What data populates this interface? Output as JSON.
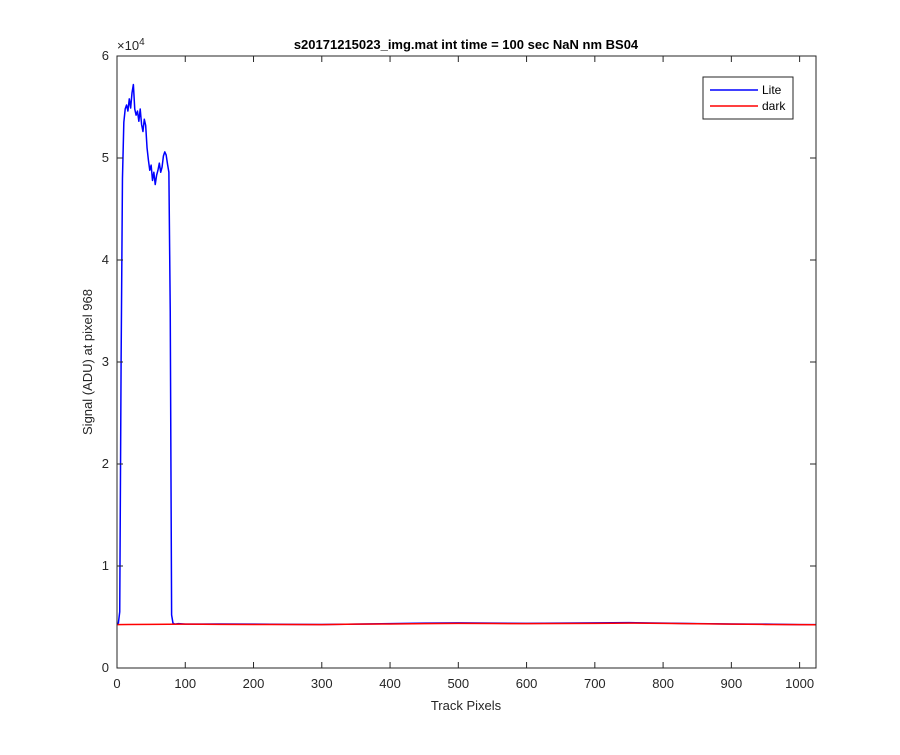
{
  "chart_data": {
    "type": "line",
    "title": "s20171215023_img.mat int time = 100 sec  NaN nm BS04",
    "xlabel": "Track Pixels",
    "ylabel": "Signal (ADU) at pixel 968",
    "y_exponent_label": "×10",
    "y_exponent_power": "4",
    "xlim": [
      0,
      1024
    ],
    "ylim": [
      0,
      60000
    ],
    "xticks": [
      0,
      100,
      200,
      300,
      400,
      500,
      600,
      700,
      800,
      900,
      1000
    ],
    "yticks": [
      0,
      10000,
      20000,
      30000,
      40000,
      50000,
      60000
    ],
    "ytick_labels": [
      "0",
      "1",
      "2",
      "3",
      "4",
      "5",
      "6"
    ],
    "grid": false,
    "legend_position": "top-right",
    "series": [
      {
        "name": "Lite",
        "color": "#0000ff",
        "points": [
          [
            0,
            4300
          ],
          [
            2,
            4400
          ],
          [
            4,
            5500
          ],
          [
            6,
            30000
          ],
          [
            8,
            48000
          ],
          [
            10,
            53500
          ],
          [
            12,
            54800
          ],
          [
            14,
            55200
          ],
          [
            16,
            54600
          ],
          [
            18,
            55800
          ],
          [
            20,
            54900
          ],
          [
            22,
            56400
          ],
          [
            24,
            57200
          ],
          [
            26,
            54800
          ],
          [
            28,
            54200
          ],
          [
            30,
            54600
          ],
          [
            32,
            53600
          ],
          [
            34,
            54800
          ],
          [
            36,
            53300
          ],
          [
            38,
            52600
          ],
          [
            40,
            53800
          ],
          [
            42,
            53200
          ],
          [
            44,
            51000
          ],
          [
            46,
            49800
          ],
          [
            48,
            48800
          ],
          [
            50,
            49300
          ],
          [
            52,
            47800
          ],
          [
            54,
            48600
          ],
          [
            56,
            47400
          ],
          [
            58,
            48300
          ],
          [
            60,
            48800
          ],
          [
            62,
            49500
          ],
          [
            64,
            48600
          ],
          [
            66,
            49100
          ],
          [
            68,
            50200
          ],
          [
            70,
            50600
          ],
          [
            72,
            50300
          ],
          [
            74,
            49400
          ],
          [
            76,
            48600
          ],
          [
            78,
            35000
          ],
          [
            80,
            5200
          ],
          [
            82,
            4400
          ],
          [
            85,
            4300
          ],
          [
            90,
            4350
          ],
          [
            100,
            4300
          ],
          [
            150,
            4320
          ],
          [
            200,
            4300
          ],
          [
            250,
            4280
          ],
          [
            300,
            4270
          ],
          [
            350,
            4300
          ],
          [
            400,
            4350
          ],
          [
            450,
            4400
          ],
          [
            500,
            4420
          ],
          [
            550,
            4400
          ],
          [
            600,
            4380
          ],
          [
            650,
            4400
          ],
          [
            700,
            4420
          ],
          [
            750,
            4450
          ],
          [
            800,
            4400
          ],
          [
            850,
            4350
          ],
          [
            900,
            4320
          ],
          [
            950,
            4300
          ],
          [
            1000,
            4250
          ],
          [
            1024,
            4250
          ]
        ]
      },
      {
        "name": "dark",
        "color": "#ff0000",
        "points": [
          [
            0,
            4250
          ],
          [
            50,
            4280
          ],
          [
            100,
            4300
          ],
          [
            150,
            4280
          ],
          [
            200,
            4260
          ],
          [
            250,
            4270
          ],
          [
            300,
            4250
          ],
          [
            350,
            4300
          ],
          [
            400,
            4320
          ],
          [
            450,
            4350
          ],
          [
            500,
            4370
          ],
          [
            550,
            4360
          ],
          [
            600,
            4350
          ],
          [
            650,
            4360
          ],
          [
            700,
            4380
          ],
          [
            750,
            4400
          ],
          [
            800,
            4380
          ],
          [
            850,
            4340
          ],
          [
            900,
            4300
          ],
          [
            950,
            4270
          ],
          [
            1000,
            4250
          ],
          [
            1024,
            4240
          ]
        ]
      }
    ]
  }
}
